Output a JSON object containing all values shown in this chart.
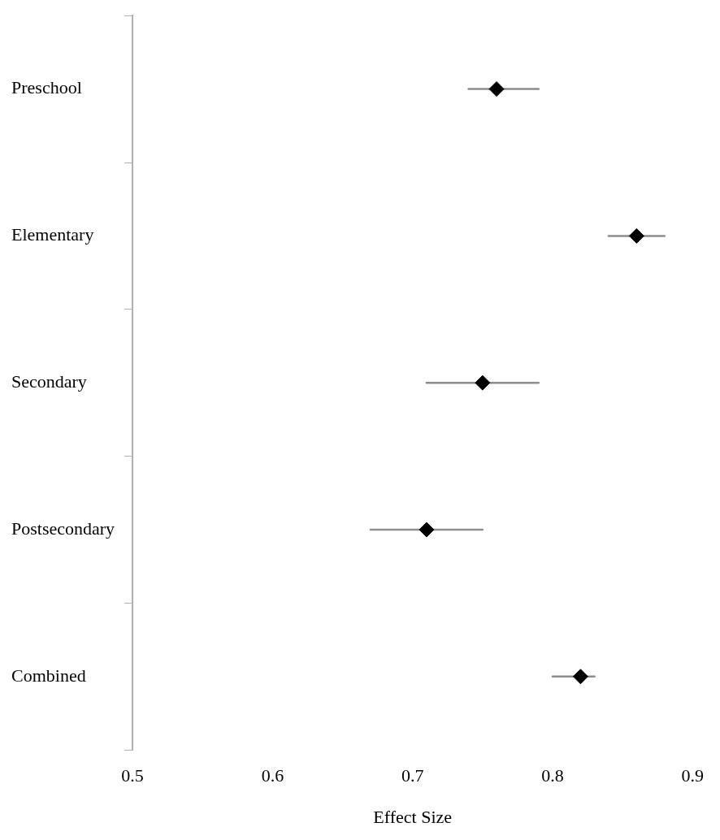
{
  "chart_data": {
    "type": "scatter",
    "orientation": "horizontal",
    "xlabel": "Effect Size",
    "categories": [
      "Preschool",
      "Elementary",
      "Secondary",
      "Postsecondary",
      "Combined"
    ],
    "values": [
      0.76,
      0.86,
      0.75,
      0.71,
      0.82
    ],
    "errors": [
      [
        0.74,
        0.79
      ],
      [
        0.84,
        0.88
      ],
      [
        0.71,
        0.79
      ],
      [
        0.67,
        0.75
      ],
      [
        0.8,
        0.83
      ]
    ],
    "color": "#000000",
    "marker": "diamond",
    "xlim": [
      0.5,
      0.9
    ],
    "xticks": [
      0.5,
      0.6,
      0.7,
      0.8,
      0.9
    ],
    "grid": false,
    "legend": false
  }
}
